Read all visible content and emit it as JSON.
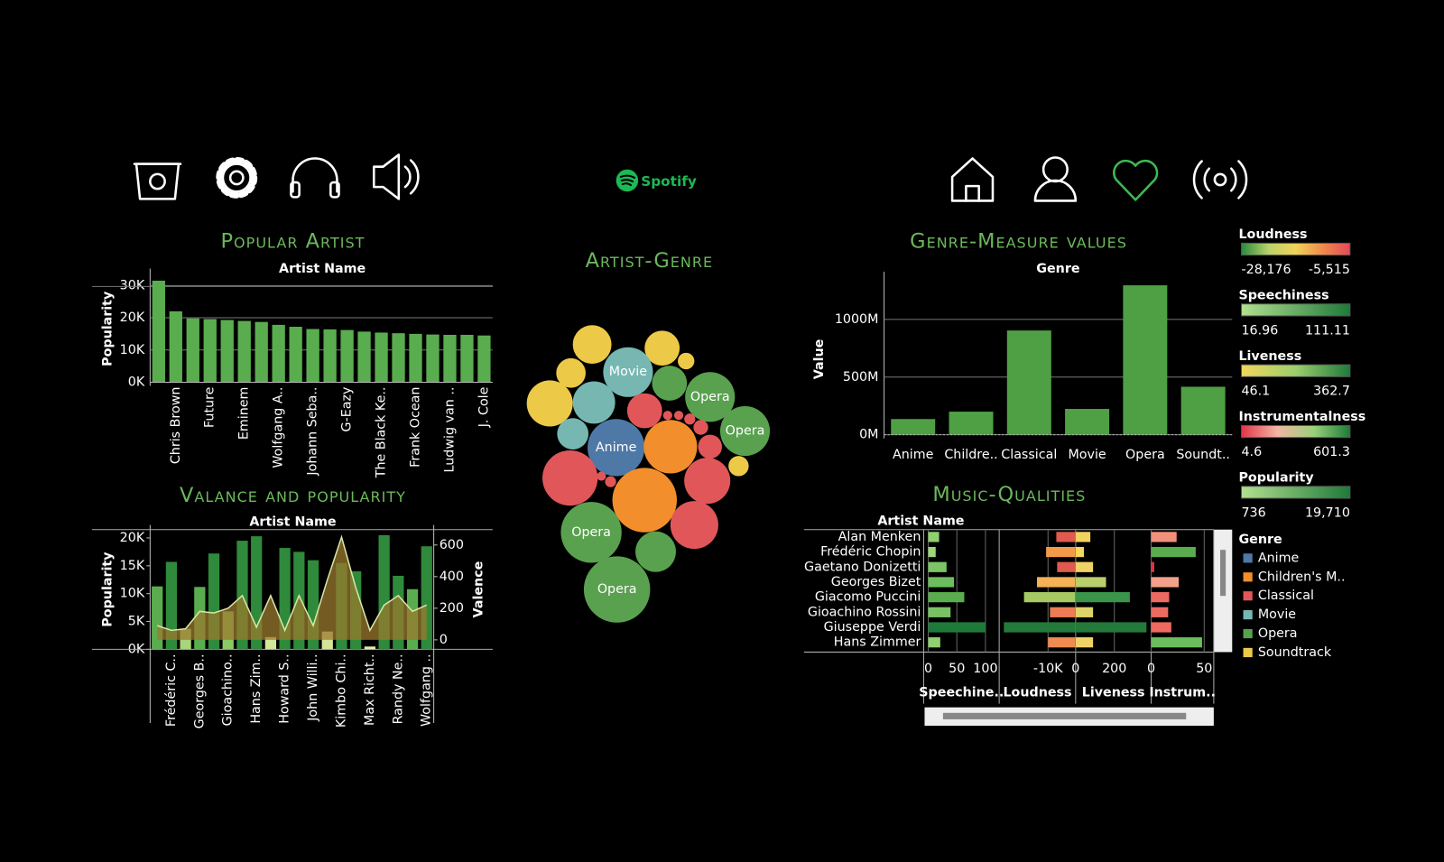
{
  "header": {
    "logo": "Spotify"
  },
  "chart_data": [
    {
      "type": "bar",
      "title": "Popular Artist",
      "header": "Artist Name",
      "ylabel": "Popularity",
      "categories": [
        null,
        "Chris Brown",
        null,
        "Future",
        null,
        "Eminem",
        null,
        "Wolfgang A..",
        null,
        "Johann Seba..",
        null,
        "G-Eazy",
        null,
        "The Black Ke..",
        null,
        "Frank Ocean",
        null,
        "Ludwig van ..",
        null,
        "J. Cole"
      ],
      "values": [
        31500,
        22000,
        19800,
        19600,
        19300,
        19000,
        18700,
        17800,
        17200,
        16500,
        16400,
        16200,
        15700,
        15400,
        15200,
        15000,
        14800,
        14700,
        14700,
        14500
      ],
      "color": "#5aad4e",
      "ylim": [
        0,
        33000
      ],
      "yticks": [
        {
          "value": 0,
          "label": "0K"
        },
        {
          "value": 10000,
          "label": "10K"
        },
        {
          "value": 20000,
          "label": "20K"
        },
        {
          "value": 30000,
          "label": "30K"
        }
      ],
      "grid": true,
      "rotate_labels": true
    },
    {
      "type": "bubble",
      "title": "Artist-Genre",
      "labels": [
        null,
        null,
        null,
        null,
        "Movie",
        null,
        "Opera",
        null,
        null,
        null,
        "Opera",
        null,
        null,
        null,
        null,
        null,
        "Anime",
        null,
        null,
        null,
        null,
        null,
        null,
        null,
        null,
        "Opera",
        null,
        null,
        "Opera"
      ],
      "values": [
        441,
        361,
        81,
        256,
        729,
        361,
        729,
        625,
        529,
        361,
        729,
        289,
        25,
        25,
        36,
        64,
        961,
        841,
        169,
        121,
        900,
        25,
        36,
        625,
        1225,
        1089,
        676,
        484,
        1296
      ],
      "colors": [
        "#edc948",
        "#edc948",
        "#edc948",
        "#edc948",
        "#76b7b2",
        "#59a14f",
        "#59a14f",
        "#edc948",
        "#76b7b2",
        "#e15759",
        "#59a14f",
        "#76b7b2",
        "#e15759",
        "#e15759",
        "#e15759",
        "#e15759",
        "#4e79a7",
        "#f28e2b",
        "#e15759",
        "#edc948",
        "#e15759",
        "#e15759",
        "#e15759",
        "#e15759",
        "#f28e2b",
        "#59a14f",
        "#e15759",
        "#59a14f",
        "#59a14f"
      ]
    },
    {
      "type": "combo",
      "title": "Valance and popularity",
      "header": "Artist Name",
      "ylabel": "Popularity",
      "y2label": "Valence",
      "categories": [
        null,
        "Frédéric C..",
        null,
        "Georges B..",
        null,
        "Gioachino..",
        null,
        "Hans Zim..",
        null,
        "Howard S..",
        null,
        "John Willi..",
        null,
        "Kimbo Chi..",
        null,
        "Max Richt..",
        null,
        "Randy Ne..",
        null,
        "Wolfgang .."
      ],
      "series": [
        {
          "values": [
            11300,
            15700,
            3700,
            11200,
            17200,
            6800,
            19500,
            20300,
            2200,
            18200,
            17500,
            16000,
            3200,
            15500,
            14000,
            500,
            20500,
            13200,
            10800,
            18500
          ],
          "colors": [
            "#5aad4e",
            "#2f8a3b",
            "#a9d47a",
            "#5aad4e",
            "#2f8a3b",
            "#8cc864",
            "#2f8a3b",
            "#2f8a3b",
            "#d4e59a",
            "#2f8a3b",
            "#2f8a3b",
            "#2f8a3b",
            "#d4e59a",
            "#2f8a3b",
            "#2f8a3b",
            "#e2eeb0",
            "#2f8a3b",
            "#2f8a3b",
            "#5aad4e",
            "#2f8a3b"
          ]
        },
        {
          "axis": "y2",
          "values": [
            90,
            60,
            70,
            180,
            170,
            200,
            280,
            80,
            280,
            60,
            280,
            90,
            380,
            650,
            330,
            60,
            220,
            280,
            180,
            220
          ],
          "color": "#9a7a2e"
        }
      ],
      "ylim": [
        0,
        21000
      ],
      "yticks": [
        {
          "value": 0,
          "label": "0K"
        },
        {
          "value": 5000,
          "label": "5K"
        },
        {
          "value": 10000,
          "label": "10K"
        },
        {
          "value": 15000,
          "label": "15K"
        },
        {
          "value": 20000,
          "label": "20K"
        }
      ],
      "y2lim": [
        -60,
        680
      ],
      "y2ticks": [
        0,
        200,
        400,
        600
      ],
      "rotate_labels": true
    },
    {
      "type": "bar",
      "title": "Genre-Measure values",
      "header": "Genre",
      "ylabel": "Value",
      "categories": [
        "Anime",
        "Childre..",
        "Classical",
        "Movie",
        "Opera",
        "Soundt.."
      ],
      "values": [
        136000000,
        200000000,
        904000000,
        224000000,
        1296000000,
        416000000
      ],
      "color": "#4fa044",
      "ylim": [
        0,
        1350000000
      ],
      "yticks": [
        {
          "value": 0,
          "label": "0M"
        },
        {
          "value": 500000000,
          "label": "500M"
        },
        {
          "value": 1000000000,
          "label": "1000M"
        }
      ],
      "grid": true,
      "rotate_labels": false
    },
    {
      "type": "bar-matrix",
      "title": "Music-Qualities",
      "header": "Artist Name",
      "rows": [
        "Alan Menken",
        "Frédéric Chopin",
        "Gaetano Donizetti",
        "Georges Bizet",
        "Giacomo Puccini",
        "Gioachino Rossini",
        "Giuseppe Verdi",
        "Hans Zimmer"
      ],
      "series": [
        {
          "name": "Speechine..",
          "values": [
            19,
            13,
            32,
            45,
            63,
            39,
            100,
            21
          ],
          "colors": [
            "#8fd16f",
            "#9fd67a",
            "#7cc466",
            "#6cbd5d",
            "#5aad4e",
            "#78c264",
            "#1f7a3a",
            "#8fd16f"
          ],
          "xlim": [
            -8,
            124
          ],
          "xticks": [
            0,
            50,
            100
          ]
        },
        {
          "name": "Loudness",
          "values": [
            -7000,
            -10700,
            -6700,
            -14000,
            -18700,
            -9300,
            -26000,
            -10000
          ],
          "colors": [
            "#e05a4e",
            "#f39a4a",
            "#e05a4e",
            "#f4b155",
            "#a6c964",
            "#ec7d55",
            "#237a3b",
            "#ef8a50"
          ],
          "xlim": [
            -27700,
            0
          ],
          "xticks": [
            {
              "value": -10000,
              "label": "-10K"
            }
          ]
        },
        {
          "name": "Liveness",
          "values": [
            76,
            43,
            90,
            157,
            280,
            90,
            366,
            90
          ],
          "colors": [
            "#f2d360",
            "#f5d85c",
            "#eed468",
            "#b9cf6c",
            "#3a944a",
            "#ded56a",
            "#237a3b",
            "#eed468"
          ],
          "xlim": [
            0,
            390
          ],
          "xticks": [
            0,
            200
          ]
        },
        {
          "name": "Instrum..",
          "values": [
            24,
            42,
            3,
            26,
            17,
            16,
            19,
            48
          ],
          "colors": [
            "#f3907a",
            "#5aad4e",
            "#d83545",
            "#f2a08a",
            "#ec6a60",
            "#ec6a60",
            "#ec6a60",
            "#6cbd5d"
          ],
          "xlim": [
            0,
            59
          ],
          "xticks": [
            0,
            50
          ]
        }
      ]
    }
  ],
  "legends": [
    {
      "title": "Loudness",
      "colors": [
        "#2a8a3e",
        "#b9d36b",
        "#f1d35a",
        "#f08a4b",
        "#e34a5a"
      ],
      "min": {
        "value": -28176,
        "label": "-28,176"
      },
      "max": {
        "value": -5515,
        "label": "-5,515"
      }
    },
    {
      "title": "Speechiness",
      "colors": [
        "#b2e08f",
        "#1f7a3a"
      ],
      "min": 16.96,
      "max": 111.11
    },
    {
      "title": "Liveness",
      "colors": [
        "#f0d65c",
        "#9ccf6d",
        "#1f7a3a"
      ],
      "min": 46.1,
      "max": 362.7
    },
    {
      "title": "Instrumentalness",
      "colors": [
        "#e0354a",
        "#f2b7a3",
        "#9ad07c",
        "#1f7a3a"
      ],
      "min": 4.6,
      "max": 601.3
    },
    {
      "title": "Popularity",
      "colors": [
        "#b2e08f",
        "#1f7a3a"
      ],
      "min": 736,
      "max": {
        "value": 19710,
        "label": "19,710"
      }
    }
  ],
  "genre_legend": {
    "title": "Genre",
    "items": [
      {
        "name": "Anime",
        "color": "#4e79a7"
      },
      {
        "name": "Children's M..",
        "color": "#f28e2b"
      },
      {
        "name": "Classical",
        "color": "#e15759"
      },
      {
        "name": "Movie",
        "color": "#76b7b2"
      },
      {
        "name": "Opera",
        "color": "#59a14f"
      },
      {
        "name": "Soundtrack",
        "color": "#edc948"
      }
    ]
  }
}
